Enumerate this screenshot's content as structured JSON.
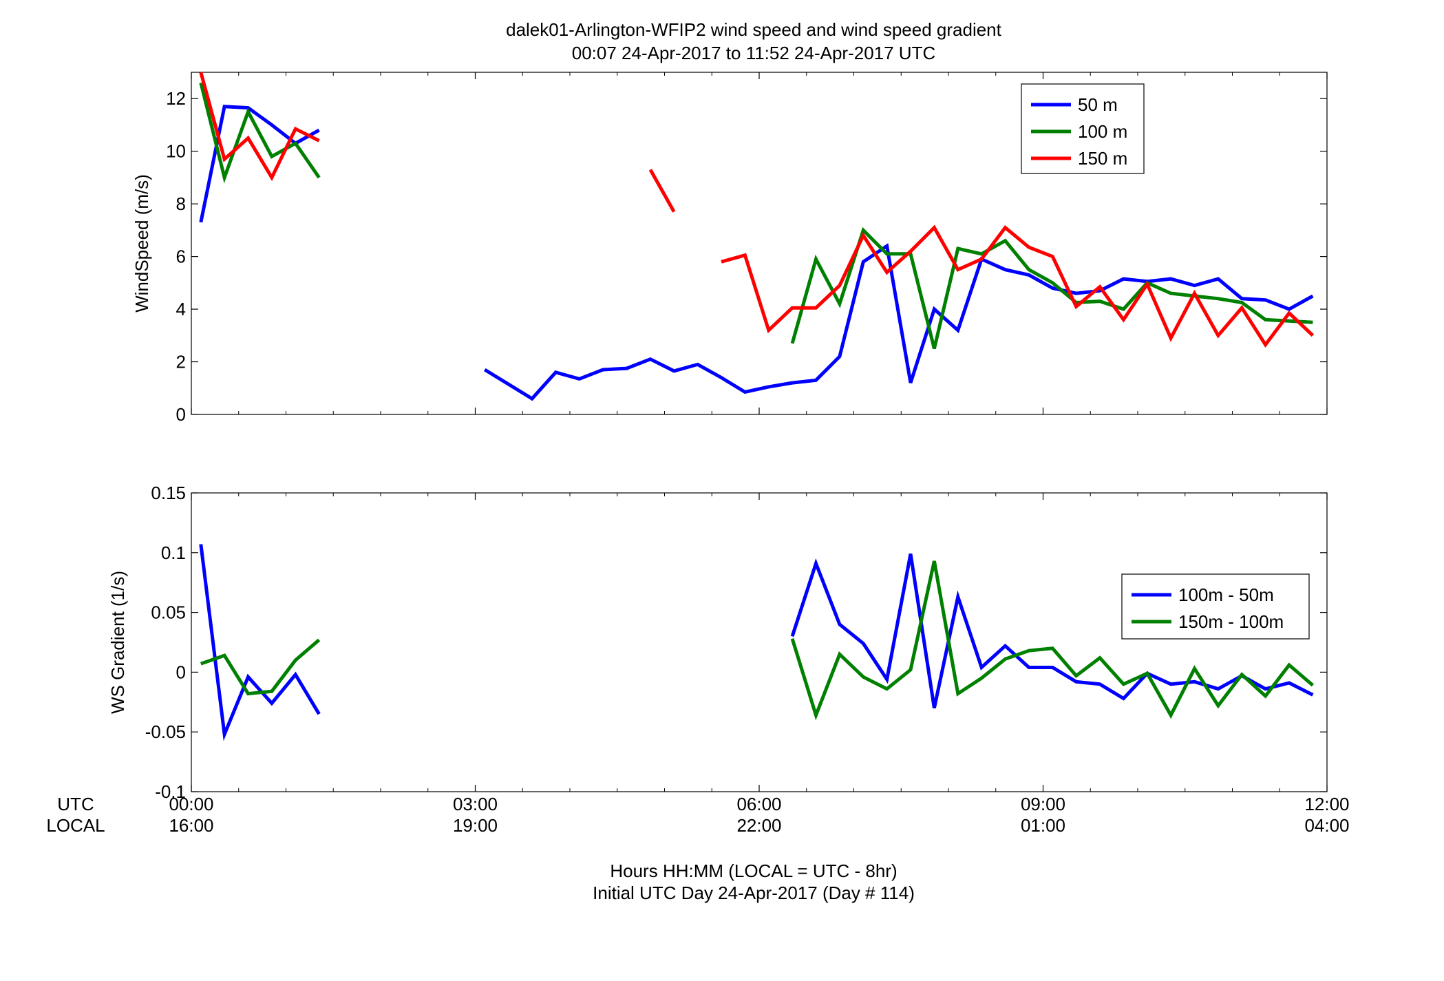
{
  "title": "dalek01-Arlington-WFIP2  wind speed and wind speed gradient",
  "subtitle": "00:07 24-Apr-2017 to 11:52 24-Apr-2017  UTC",
  "xlabel": "Hours HH:MM  (LOCAL = UTC - 8hr)",
  "xlabel2": "Initial UTC Day 24-Apr-2017 (Day # 114)",
  "utc_label": "UTC",
  "local_label": "LOCAL",
  "x_ticks": [
    {
      "hours": 0,
      "utc": "00:00",
      "local": "16:00"
    },
    {
      "hours": 3,
      "utc": "03:00",
      "local": "19:00"
    },
    {
      "hours": 6,
      "utc": "06:00",
      "local": "22:00"
    },
    {
      "hours": 9,
      "utc": "09:00",
      "local": "01:00"
    },
    {
      "hours": 12,
      "utc": "12:00",
      "local": "04:00"
    }
  ],
  "colors": {
    "blue": "#0000ff",
    "green": "#008000",
    "red": "#ff0000"
  },
  "chart_data": [
    {
      "type": "line",
      "ylabel": "WindSpeed (m/s)",
      "xlim": [
        0,
        12
      ],
      "ylim": [
        0,
        13
      ],
      "yticks": [
        0,
        2,
        4,
        6,
        8,
        10,
        12
      ],
      "grid": false,
      "legend_position": "top-right",
      "x_unit": "hours UTC",
      "series": [
        {
          "name": "50 m",
          "color": "#0000ff",
          "segments": [
            [
              [
                0.1,
                7.3
              ],
              [
                0.35,
                11.7
              ],
              [
                0.6,
                11.65
              ],
              [
                0.85,
                11.0
              ],
              [
                1.1,
                10.3
              ],
              [
                1.35,
                10.8
              ]
            ],
            [
              [
                3.1,
                1.7
              ],
              [
                3.6,
                0.6
              ],
              [
                3.85,
                1.6
              ],
              [
                4.1,
                1.35
              ],
              [
                4.35,
                1.7
              ],
              [
                4.6,
                1.75
              ],
              [
                4.85,
                2.1
              ],
              [
                5.1,
                1.65
              ],
              [
                5.35,
                1.9
              ],
              [
                5.6,
                1.4
              ],
              [
                5.85,
                0.85
              ],
              [
                6.1,
                1.05
              ],
              [
                6.35,
                1.2
              ],
              [
                6.6,
                1.3
              ],
              [
                6.85,
                2.2
              ],
              [
                7.1,
                5.8
              ],
              [
                7.35,
                6.4
              ],
              [
                7.6,
                1.2
              ],
              [
                7.85,
                4.0
              ],
              [
                8.1,
                3.2
              ],
              [
                8.35,
                5.9
              ],
              [
                8.6,
                5.5
              ],
              [
                8.85,
                5.3
              ],
              [
                9.1,
                4.8
              ],
              [
                9.35,
                4.6
              ],
              [
                9.6,
                4.7
              ],
              [
                9.85,
                5.15
              ],
              [
                10.1,
                5.05
              ],
              [
                10.35,
                5.15
              ],
              [
                10.6,
                4.9
              ],
              [
                10.85,
                5.15
              ],
              [
                11.1,
                4.4
              ],
              [
                11.35,
                4.35
              ],
              [
                11.6,
                4.0
              ],
              [
                11.85,
                4.5
              ]
            ]
          ]
        },
        {
          "name": "100 m",
          "color": "#008000",
          "segments": [
            [
              [
                0.1,
                12.6
              ],
              [
                0.35,
                9.0
              ],
              [
                0.6,
                11.5
              ],
              [
                0.85,
                9.8
              ],
              [
                1.1,
                10.3
              ],
              [
                1.35,
                9.0
              ]
            ],
            [
              [
                6.35,
                2.7
              ],
              [
                6.6,
                5.9
              ],
              [
                6.85,
                4.2
              ],
              [
                7.1,
                7.0
              ],
              [
                7.35,
                6.1
              ],
              [
                7.6,
                6.1
              ],
              [
                7.85,
                2.5
              ],
              [
                8.1,
                6.3
              ],
              [
                8.35,
                6.1
              ],
              [
                8.6,
                6.6
              ],
              [
                8.85,
                5.5
              ],
              [
                9.1,
                5.0
              ],
              [
                9.35,
                4.25
              ],
              [
                9.6,
                4.3
              ],
              [
                9.85,
                4.0
              ],
              [
                10.1,
                5.0
              ],
              [
                10.35,
                4.6
              ],
              [
                10.6,
                4.5
              ],
              [
                10.85,
                4.4
              ],
              [
                11.1,
                4.25
              ],
              [
                11.35,
                3.6
              ],
              [
                11.6,
                3.55
              ],
              [
                11.85,
                3.5
              ]
            ]
          ]
        },
        {
          "name": "150 m",
          "color": "#ff0000",
          "segments": [
            [
              [
                0.1,
                13.0
              ],
              [
                0.35,
                9.7
              ],
              [
                0.6,
                10.5
              ],
              [
                0.85,
                9.0
              ],
              [
                1.1,
                10.85
              ],
              [
                1.35,
                10.4
              ]
            ],
            [
              [
                4.85,
                9.3
              ],
              [
                5.1,
                7.7
              ]
            ],
            [
              [
                5.6,
                5.8
              ],
              [
                5.85,
                6.05
              ],
              [
                6.1,
                3.2
              ],
              [
                6.35,
                4.05
              ],
              [
                6.6,
                4.05
              ],
              [
                6.85,
                4.9
              ],
              [
                7.1,
                6.8
              ],
              [
                7.35,
                5.4
              ],
              [
                7.6,
                6.2
              ],
              [
                7.85,
                7.1
              ],
              [
                8.1,
                5.5
              ],
              [
                8.35,
                5.9
              ],
              [
                8.6,
                7.1
              ],
              [
                8.85,
                6.35
              ],
              [
                9.1,
                6.0
              ],
              [
                9.35,
                4.1
              ],
              [
                9.6,
                4.85
              ],
              [
                9.85,
                3.6
              ],
              [
                10.1,
                4.95
              ],
              [
                10.35,
                2.9
              ],
              [
                10.6,
                4.6
              ],
              [
                10.85,
                3.0
              ],
              [
                11.1,
                4.05
              ],
              [
                11.35,
                2.65
              ],
              [
                11.6,
                3.85
              ],
              [
                11.85,
                3.0
              ]
            ]
          ]
        }
      ]
    },
    {
      "type": "line",
      "ylabel": "WS Gradient (1/s)",
      "xlim": [
        0,
        12
      ],
      "ylim": [
        -0.1,
        0.15
      ],
      "yticks": [
        -0.1,
        -0.05,
        0,
        0.05,
        0.1,
        0.15
      ],
      "ytick_labels": [
        "-0.1",
        "-0.05",
        "0",
        "0.05",
        "0.1",
        "0.15"
      ],
      "grid": false,
      "legend_position": "right",
      "x_unit": "hours UTC",
      "series": [
        {
          "name": "100m - 50m",
          "color": "#0000ff",
          "segments": [
            [
              [
                0.1,
                0.107
              ],
              [
                0.35,
                -0.052
              ],
              [
                0.6,
                -0.004
              ],
              [
                0.85,
                -0.026
              ],
              [
                1.1,
                -0.002
              ],
              [
                1.35,
                -0.035
              ]
            ],
            [
              [
                6.35,
                0.03
              ],
              [
                6.6,
                0.091
              ],
              [
                6.85,
                0.04
              ],
              [
                7.1,
                0.024
              ],
              [
                7.35,
                -0.006
              ],
              [
                7.6,
                0.099
              ],
              [
                7.85,
                -0.03
              ],
              [
                8.1,
                0.063
              ],
              [
                8.35,
                0.004
              ],
              [
                8.6,
                0.022
              ],
              [
                8.85,
                0.004
              ],
              [
                9.1,
                0.004
              ],
              [
                9.35,
                -0.008
              ],
              [
                9.6,
                -0.01
              ],
              [
                9.85,
                -0.022
              ],
              [
                10.1,
                -0.001
              ],
              [
                10.35,
                -0.01
              ],
              [
                10.6,
                -0.008
              ],
              [
                10.85,
                -0.014
              ],
              [
                11.1,
                -0.003
              ],
              [
                11.35,
                -0.014
              ],
              [
                11.6,
                -0.009
              ],
              [
                11.85,
                -0.019
              ]
            ]
          ]
        },
        {
          "name": "150m - 100m",
          "color": "#008000",
          "segments": [
            [
              [
                0.1,
                0.007
              ],
              [
                0.35,
                0.014
              ],
              [
                0.6,
                -0.018
              ],
              [
                0.85,
                -0.016
              ],
              [
                1.1,
                0.01
              ],
              [
                1.35,
                0.027
              ]
            ],
            [
              [
                6.35,
                0.028
              ],
              [
                6.6,
                -0.036
              ],
              [
                6.85,
                0.015
              ],
              [
                7.1,
                -0.004
              ],
              [
                7.35,
                -0.014
              ],
              [
                7.6,
                0.002
              ],
              [
                7.85,
                0.093
              ],
              [
                8.1,
                -0.018
              ],
              [
                8.35,
                -0.005
              ],
              [
                8.6,
                0.011
              ],
              [
                8.85,
                0.018
              ],
              [
                9.1,
                0.02
              ],
              [
                9.35,
                -0.003
              ],
              [
                9.6,
                0.012
              ],
              [
                9.85,
                -0.01
              ],
              [
                10.1,
                -0.001
              ],
              [
                10.35,
                -0.036
              ],
              [
                10.6,
                0.003
              ],
              [
                10.85,
                -0.028
              ],
              [
                11.1,
                -0.002
              ],
              [
                11.35,
                -0.02
              ],
              [
                11.6,
                0.006
              ],
              [
                11.85,
                -0.011
              ]
            ]
          ]
        }
      ]
    }
  ]
}
